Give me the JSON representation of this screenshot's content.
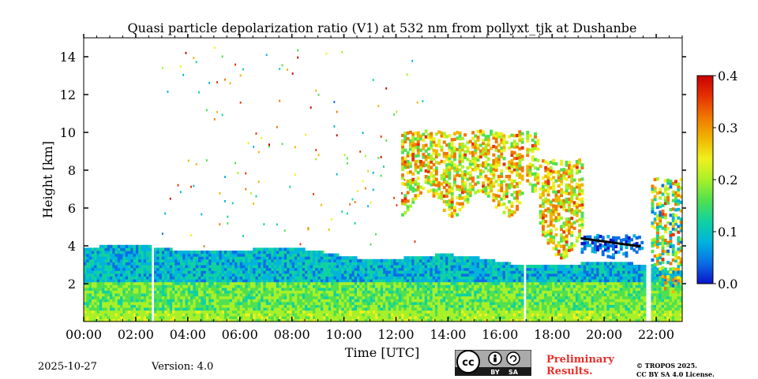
{
  "chart_data": {
    "type": "heatmap",
    "title": "Quasi particle depolarization ratio (V1) at 532 nm from pollyxt_tjk at Dushanbe",
    "xlabel": "Time [UTC]",
    "ylabel": "Height [km]",
    "x_ticks": [
      "00:00",
      "02:00",
      "04:00",
      "06:00",
      "08:00",
      "10:00",
      "12:00",
      "14:00",
      "16:00",
      "18:00",
      "20:00",
      "22:00"
    ],
    "y_ticks": [
      "2",
      "4",
      "6",
      "8",
      "10",
      "12",
      "14"
    ],
    "xlim_hours": [
      0,
      23
    ],
    "ylim_km": [
      0,
      15
    ],
    "colorbar": {
      "ticks": [
        "0.0",
        "0.1",
        "0.2",
        "0.3",
        "0.4"
      ],
      "range": [
        0.0,
        0.4
      ],
      "colors": [
        "#0a14c8",
        "#0a6ee6",
        "#00b4dc",
        "#10d2a0",
        "#50e050",
        "#a8f028",
        "#f0f01e",
        "#f0b400",
        "#f07800",
        "#e63200",
        "#c80000"
      ]
    },
    "data_gaps_hours": [
      [
        2.55,
        2.65
      ],
      [
        16.85,
        16.98
      ],
      [
        21.55,
        21.72
      ]
    ],
    "layers": [
      {
        "name": "boundary layer aerosol",
        "t_start": 0,
        "t_end": 23,
        "h_base_km": 0,
        "h_top_km": 3.8,
        "depol_range": [
          0.03,
          0.22
        ]
      },
      {
        "name": "near-surface layer",
        "t_start": 0,
        "t_end": 23,
        "h_base_km": 0,
        "h_top_km": 0.5,
        "depol_range": [
          0.15,
          0.25
        ]
      },
      {
        "name": "cirrus clouds",
        "t_start": 12.2,
        "t_end": 17.5,
        "h_base_km": 5.5,
        "h_top_km": 10,
        "depol_range": [
          0.15,
          0.35
        ]
      },
      {
        "name": "falling ice streaks",
        "t_start": 17.5,
        "t_end": 19.2,
        "h_base_km": 3.3,
        "h_top_km": 8.5,
        "depol_range": [
          0.15,
          0.35
        ]
      },
      {
        "name": "water cloud top (low depol)",
        "t_start": 19.1,
        "t_end": 21.5,
        "h_base_km": 3.3,
        "h_top_km": 4.5,
        "depol_range": [
          0.0,
          0.08
        ]
      },
      {
        "name": "late evening cirrus",
        "t_start": 21.8,
        "t_end": 23,
        "h_base_km": 1.5,
        "h_top_km": 7.5,
        "depol_range": [
          0.05,
          0.35
        ]
      }
    ]
  },
  "footer": {
    "date": "2025-10-27",
    "version": "Version: 4.0",
    "preliminary_line1": "Preliminary",
    "preliminary_line2": "Results.",
    "copyright_line1": "© TROPOS 2025.",
    "copyright_line2": "CC BY SA 4.0 License."
  },
  "license_badge": {
    "cc": "cc",
    "by": "BY",
    "sa": "SA"
  },
  "colors": {
    "preliminary": "#e8302a",
    "badge_bg": "#aaaaaa",
    "badge_dark": "#1a1a1a"
  }
}
